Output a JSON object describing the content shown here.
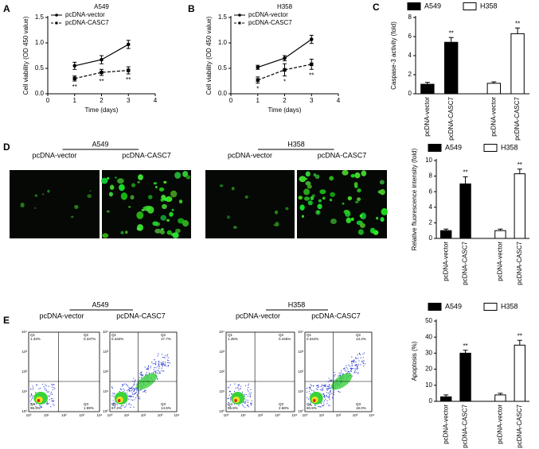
{
  "panel_labels": [
    "A",
    "B",
    "C",
    "D",
    "E"
  ],
  "chart_data": [
    {
      "type": "line",
      "title": "A549",
      "xlabel": "Time (days)",
      "ylabel": "Cell viability (OD 450 value)",
      "x": [
        1,
        2,
        3
      ],
      "xlim": [
        0,
        4
      ],
      "xticks": [
        0,
        1,
        2,
        3,
        4
      ],
      "ylim": [
        0,
        1.5
      ],
      "yticks": [
        {
          "value": 0,
          "label": "0.0"
        },
        {
          "value": 0.5,
          "label": "0.5"
        },
        {
          "value": 1,
          "label": "1.0"
        },
        {
          "value": 1.5,
          "label": "1.5"
        }
      ],
      "legend": "upper left",
      "series": [
        {
          "name": "pcDNA-vector",
          "color": "#000000",
          "dashed": false,
          "values": [
            0.55,
            0.67,
            0.97
          ],
          "errors": [
            0.07,
            0.08,
            0.08
          ]
        },
        {
          "name": "pcDNA-CASC7",
          "color": "#000000",
          "dashed": true,
          "values": [
            0.3,
            0.42,
            0.46
          ],
          "errors": [
            0.05,
            0.06,
            0.07
          ]
        }
      ],
      "annotations": [
        "**",
        "**",
        "**"
      ]
    },
    {
      "type": "line",
      "title": "H358",
      "xlabel": "Time (days)",
      "ylabel": "Cell viability (OD 450 value)",
      "x": [
        1,
        2,
        3
      ],
      "xlim": [
        0,
        4
      ],
      "xticks": [
        0,
        1,
        2,
        3,
        4
      ],
      "ylim": [
        0,
        1.5
      ],
      "yticks": [
        {
          "value": 0,
          "label": "0.0"
        },
        {
          "value": 0.5,
          "label": "0.5"
        },
        {
          "value": 1,
          "label": "1.0"
        },
        {
          "value": 1.5,
          "label": "1.5"
        }
      ],
      "legend": "upper left",
      "series": [
        {
          "name": "pcDNA-vector",
          "color": "#000000",
          "dashed": false,
          "values": [
            0.52,
            0.7,
            1.07
          ],
          "errors": [
            0.04,
            0.05,
            0.08
          ]
        },
        {
          "name": "pcDNA-CASC7",
          "color": "#000000",
          "dashed": true,
          "values": [
            0.27,
            0.47,
            0.58
          ],
          "errors": [
            0.06,
            0.12,
            0.1
          ]
        }
      ],
      "annotations": [
        "*",
        "*",
        "**"
      ]
    },
    {
      "type": "bar",
      "ylabel": "Caspase-3 activity (fold)",
      "categories": [
        "pcDNA-vector",
        "pcDNA-CASC7",
        "pcDNA-vector",
        "pcDNA-CASC7"
      ],
      "ylim": [
        0,
        8
      ],
      "yticks": [
        0,
        2,
        4,
        6,
        8
      ],
      "legend": "top",
      "series": [
        {
          "name": "A549",
          "color": "#000000",
          "values": [
            1.0,
            5.4,
            null,
            null
          ],
          "errors": [
            0.2,
            0.5,
            null,
            null
          ]
        },
        {
          "name": "H358",
          "color": "#ffffff",
          "values": [
            null,
            null,
            1.1,
            6.3
          ],
          "errors": [
            null,
            null,
            0.15,
            0.6
          ]
        }
      ],
      "annotations": [
        null,
        "**",
        null,
        "**"
      ]
    },
    {
      "type": "bar",
      "ylabel": "Relative fluorescence intensity (fold)",
      "categories": [
        "pcDNA-vector",
        "pcDNA-CASC7",
        "pcDNA-vector",
        "pcDNA-CASC7"
      ],
      "ylim": [
        0,
        10
      ],
      "yticks": [
        0,
        2,
        4,
        6,
        8,
        10
      ],
      "legend": "top",
      "series": [
        {
          "name": "A549",
          "color": "#000000",
          "values": [
            1.0,
            7.0,
            null,
            null
          ],
          "errors": [
            0.2,
            0.9,
            null,
            null
          ]
        },
        {
          "name": "H358",
          "color": "#ffffff",
          "values": [
            null,
            null,
            1.0,
            8.3
          ],
          "errors": [
            null,
            null,
            0.2,
            0.6
          ]
        }
      ],
      "annotations": [
        null,
        "**",
        null,
        "**"
      ]
    },
    {
      "type": "bar",
      "ylabel": "Apoptosis (%)",
      "categories": [
        "pcDNA-vector",
        "pcDNA-CASC7",
        "pcDNA-vector",
        "pcDNA-CASC7"
      ],
      "ylim": [
        0,
        50
      ],
      "yticks": [
        0,
        10,
        20,
        30,
        40,
        50
      ],
      "legend": "top",
      "series": [
        {
          "name": "A549",
          "color": "#000000",
          "values": [
            2.8,
            30,
            null,
            null
          ],
          "errors": [
            1.2,
            1.8,
            null,
            null
          ]
        },
        {
          "name": "H358",
          "color": "#ffffff",
          "values": [
            null,
            null,
            4,
            35
          ],
          "errors": [
            null,
            null,
            1.0,
            3.0
          ]
        }
      ],
      "annotations": [
        null,
        "**",
        null,
        "**"
      ]
    }
  ],
  "microscopy": {
    "groups": [
      {
        "name": "A549",
        "conditions": [
          "pcDNA-vector",
          "pcDNA-CASC7"
        ]
      },
      {
        "name": "H358",
        "conditions": [
          "pcDNA-vector",
          "pcDNA-CASC7"
        ]
      }
    ]
  },
  "flow": {
    "groups": [
      {
        "name": "A549",
        "conditions": [
          "pcDNA-vector",
          "pcDNA-CASC7"
        ]
      },
      {
        "name": "H358",
        "conditions": [
          "pcDNA-vector",
          "pcDNA-CASC7"
        ]
      }
    ],
    "axis_ticks": [
      "10⁰",
      "10¹",
      "10²",
      "10³",
      "10⁴"
    ],
    "plots": [
      {
        "quadrants": [
          {
            "name": "Q1",
            "value": "1.33%"
          },
          {
            "name": "Q2",
            "value": "0.337%"
          },
          {
            "name": "Q4",
            "value": "96.3%"
          },
          {
            "name": "Q3",
            "value": "1.99%"
          }
        ]
      },
      {
        "quadrants": [
          {
            "name": "Q1",
            "value": "0.434%"
          },
          {
            "name": "Q2",
            "value": "17.7%"
          },
          {
            "name": "Q4",
            "value": "67.4%"
          },
          {
            "name": "Q3",
            "value": "14.5%"
          }
        ]
      },
      {
        "quadrants": [
          {
            "name": "Q1",
            "value": "1.45%"
          },
          {
            "name": "Q2",
            "value": "0.445%"
          },
          {
            "name": "Q4",
            "value": "95.8%"
          },
          {
            "name": "Q3",
            "value": "2.68%"
          }
        ]
      },
      {
        "quadrants": [
          {
            "name": "Q1",
            "value": "0.344%"
          },
          {
            "name": "Q2",
            "value": "13.4%"
          },
          {
            "name": "Q4",
            "value": "60.5%"
          },
          {
            "name": "Q3",
            "value": "18.0%"
          }
        ]
      }
    ]
  }
}
